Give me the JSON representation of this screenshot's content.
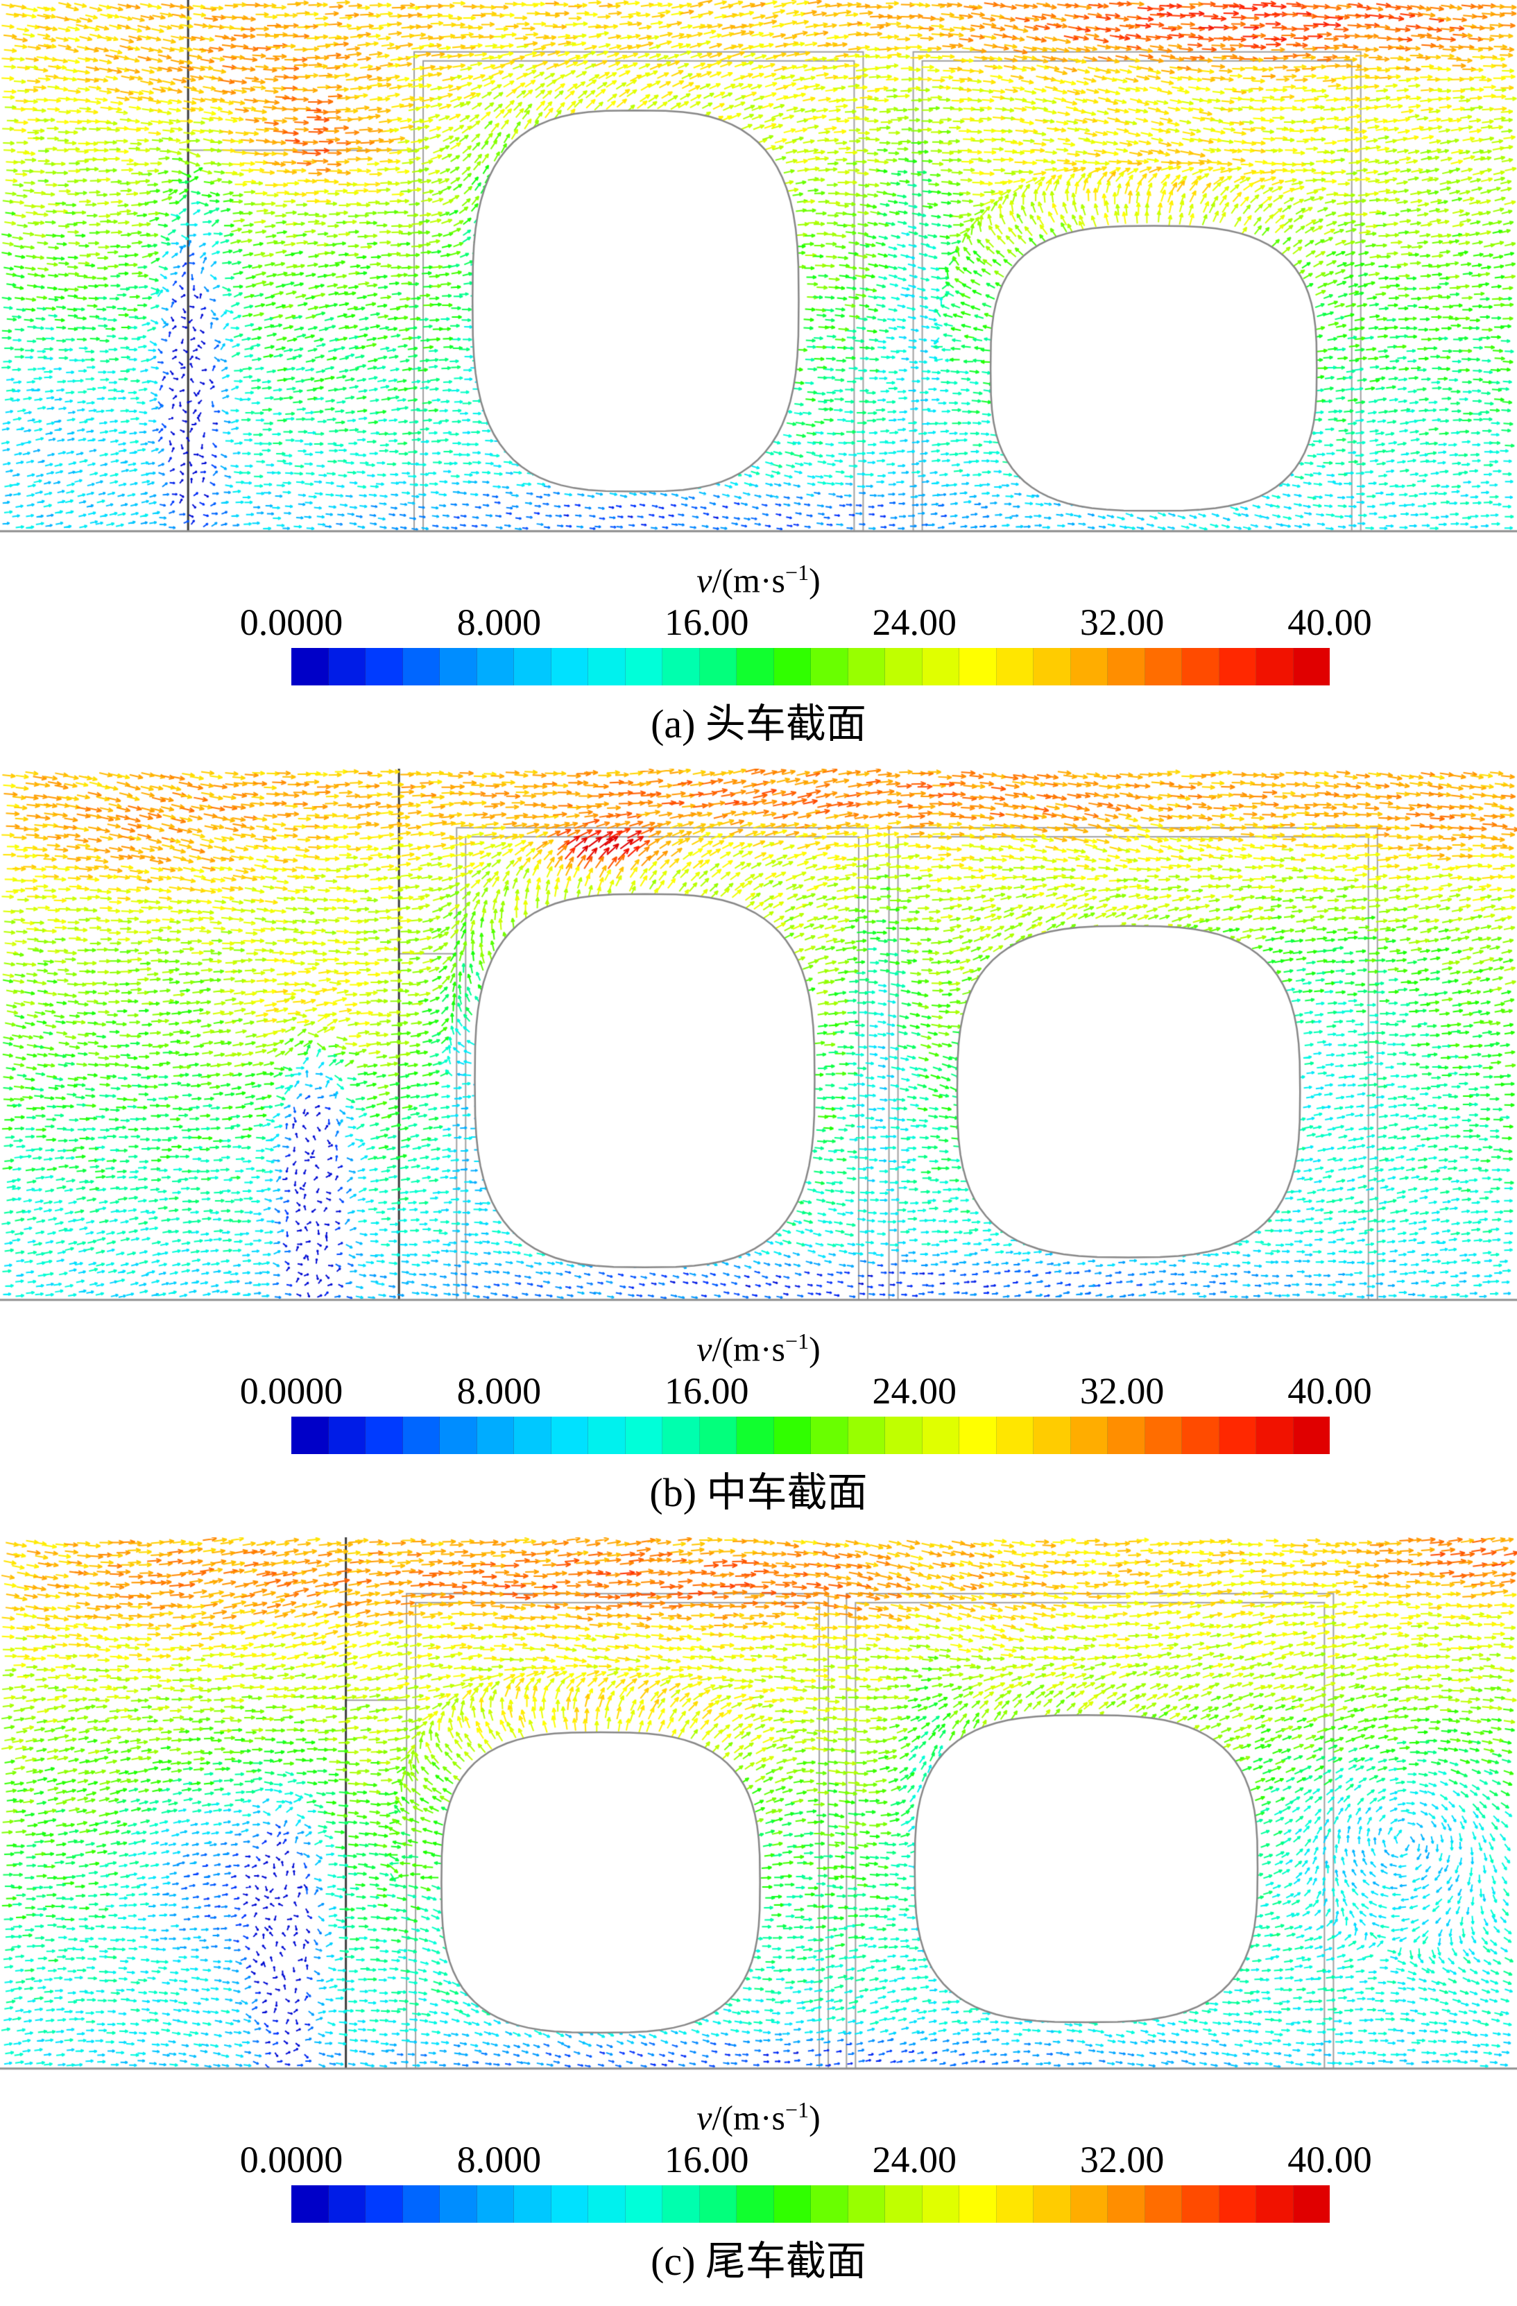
{
  "figure": {
    "background": "#ffffff",
    "n_panels": 3
  },
  "colormap_stops": [
    "#0000c8",
    "#0032ff",
    "#0080ff",
    "#00b9ff",
    "#00e6ff",
    "#00ffd9",
    "#00ff8c",
    "#19ff00",
    "#80ff00",
    "#c8ff00",
    "#ffff00",
    "#ffd200",
    "#ff9b00",
    "#ff6000",
    "#ff2100",
    "#e00000"
  ],
  "chart_data": [
    {
      "type": "vector-field",
      "panel": "a",
      "title": "(a) 头车截面",
      "description": "Velocity vector field around the head-car cross-section: two train body outlines inside rectangular frames above the ground line, slow (blue) column near the left vertical wall, fast (yellow) flow along the top, radial fan of vectors above the right body.",
      "colorbar": {
        "label": "v/(m·s−1)",
        "label_parts": {
          "italic": "v",
          "text": "/(m·s",
          "sup": "−1",
          "close": ")"
        },
        "min": 0,
        "max": 40,
        "ticks": [
          0,
          8,
          16,
          24,
          32,
          40
        ],
        "tick_labels": [
          "0.0000",
          "8.000",
          "16.00",
          "24.00",
          "32.00",
          "40.00"
        ],
        "colormap": "rainbow",
        "segments": 28,
        "orientation": "horizontal"
      },
      "geometry": {
        "ground_y": 0.962,
        "vline_x": 0.124,
        "ledge": {
          "x1": 0.124,
          "x2": 0.273,
          "y": 0.272
        },
        "boxes": [
          {
            "x1": 0.273,
            "y1": 0.094,
            "x2": 0.569
          },
          {
            "x1": 0.602,
            "y1": 0.094,
            "x2": 0.897
          }
        ],
        "blobs": [
          {
            "cx": 0.419,
            "cy": 0.545,
            "rx": 0.1075,
            "ry": 0.345,
            "n": 3.0,
            "fan": 0.35
          },
          {
            "cx": 0.7605,
            "cy": 0.667,
            "rx": 0.1075,
            "ry": 0.258,
            "n": 3.0,
            "fan": 1.0
          }
        ]
      },
      "flow": {
        "seed": 7,
        "top_speed": 29,
        "bottom_speed": 11,
        "column": {
          "x": 0.124,
          "y": 0.66,
          "sx": 0.02,
          "sy": 0.26
        },
        "speed_blobs": [
          {
            "x": 0.124,
            "y": 0.66,
            "sx": 0.02,
            "sy": 0.26,
            "ds": -26
          },
          {
            "x": 0.16,
            "y": 0.13,
            "sx": 0.1,
            "sy": 0.1,
            "ds": 5
          },
          {
            "x": 0.205,
            "y": 0.27,
            "sx": 0.05,
            "sy": 0.09,
            "ds": 9
          },
          {
            "x": 0.82,
            "y": 0.05,
            "sx": 0.2,
            "sy": 0.08,
            "ds": 8
          },
          {
            "x": 0.76,
            "y": 0.33,
            "sx": 0.11,
            "sy": 0.11,
            "ds": 5
          },
          {
            "x": 0.45,
            "y": 0.93,
            "sx": 0.26,
            "sy": 0.05,
            "ds": -9
          },
          {
            "x": 0.03,
            "y": 0.75,
            "sx": 0.08,
            "sy": 0.18,
            "ds": -5
          },
          {
            "x": 0.33,
            "y": 0.55,
            "sx": 0.03,
            "sy": 0.25,
            "ds": -8
          },
          {
            "x": 0.6,
            "y": 0.5,
            "sx": 0.025,
            "sy": 0.3,
            "ds": -8
          }
        ]
      }
    },
    {
      "type": "vector-field",
      "panel": "b",
      "title": "(b) 中车截面",
      "description": "Velocity vector field around the middle-car cross-section: orange high-speed burst above the left body, yellow band along the top, slow blue column left of the frames.",
      "colorbar": {
        "label": "v/(m·s−1)",
        "label_parts": {
          "italic": "v",
          "text": "/(m·s",
          "sup": "−1",
          "close": ")"
        },
        "min": 0,
        "max": 40,
        "ticks": [
          0,
          8,
          16,
          24,
          32,
          40
        ],
        "tick_labels": [
          "0.0000",
          "8.000",
          "16.00",
          "24.00",
          "32.00",
          "40.00"
        ],
        "colormap": "rainbow",
        "segments": 28,
        "orientation": "horizontal"
      },
      "geometry": {
        "ground_y": 0.962,
        "vline_x": 0.263,
        "ledge": {
          "x1": 0.263,
          "x2": 0.301,
          "y": 0.335
        },
        "boxes": [
          {
            "x1": 0.301,
            "y1": 0.107,
            "x2": 0.572
          },
          {
            "x1": 0.586,
            "y1": 0.107,
            "x2": 0.908
          }
        ],
        "blobs": [
          {
            "cx": 0.425,
            "cy": 0.565,
            "rx": 0.112,
            "ry": 0.338,
            "n": 3.0,
            "fan": 0.55
          },
          {
            "cx": 0.744,
            "cy": 0.585,
            "rx": 0.113,
            "ry": 0.3,
            "n": 3.0,
            "fan": 0.3
          }
        ]
      },
      "flow": {
        "seed": 13,
        "top_speed": 28,
        "bottom_speed": 11,
        "column": {
          "x": 0.205,
          "y": 0.74,
          "sx": 0.022,
          "sy": 0.22
        },
        "speed_blobs": [
          {
            "x": 0.205,
            "y": 0.74,
            "sx": 0.022,
            "sy": 0.22,
            "ds": -26
          },
          {
            "x": 0.09,
            "y": 0.13,
            "sx": 0.12,
            "sy": 0.13,
            "ds": 5
          },
          {
            "x": 0.205,
            "y": 0.45,
            "sx": 0.05,
            "sy": 0.12,
            "ds": 9
          },
          {
            "x": 0.395,
            "y": 0.15,
            "sx": 0.035,
            "sy": 0.04,
            "ds": 16
          },
          {
            "x": 0.55,
            "y": 0.06,
            "sx": 0.3,
            "sy": 0.07,
            "ds": 7
          },
          {
            "x": 0.95,
            "y": 0.1,
            "sx": 0.1,
            "sy": 0.1,
            "ds": 5
          },
          {
            "x": 0.578,
            "y": 0.5,
            "sx": 0.02,
            "sy": 0.3,
            "ds": -8
          },
          {
            "x": 0.55,
            "y": 0.93,
            "sx": 0.3,
            "sy": 0.045,
            "ds": -10
          },
          {
            "x": 0.31,
            "y": 0.6,
            "sx": 0.025,
            "sy": 0.25,
            "ds": -8
          },
          {
            "x": 0.87,
            "y": 0.5,
            "sx": 0.08,
            "sy": 0.25,
            "ds": -6
          }
        ]
      }
    },
    {
      "type": "vector-field",
      "panel": "c",
      "title": "(c) 尾车截面",
      "description": "Velocity vector field around the tail-car cross-section: yellow fast band arcing over the left body, slow blue column at the left, swirling vortex of cyan vectors at the right edge.",
      "colorbar": {
        "label": "v/(m·s−1)",
        "label_parts": {
          "italic": "v",
          "text": "/(m·s",
          "sup": "−1",
          "close": ")"
        },
        "min": 0,
        "max": 40,
        "ticks": [
          0,
          8,
          16,
          24,
          32,
          40
        ],
        "tick_labels": [
          "0.0000",
          "8.000",
          "16.00",
          "24.00",
          "32.00",
          "40.00"
        ],
        "colormap": "rainbow",
        "segments": 28,
        "orientation": "horizontal"
      },
      "geometry": {
        "ground_y": 0.962,
        "vline_x": 0.228,
        "ledge": {
          "x1": 0.228,
          "x2": 0.268,
          "y": 0.295
        },
        "boxes": [
          {
            "x1": 0.268,
            "y1": 0.102,
            "x2": 0.546
          },
          {
            "x1": 0.558,
            "y1": 0.102,
            "x2": 0.879
          }
        ],
        "blobs": [
          {
            "cx": 0.396,
            "cy": 0.625,
            "rx": 0.105,
            "ry": 0.272,
            "n": 3.0,
            "fan": 0.95
          },
          {
            "cx": 0.716,
            "cy": 0.6,
            "rx": 0.113,
            "ry": 0.278,
            "n": 3.0,
            "fan": 0.4
          }
        ]
      },
      "flow": {
        "seed": 21,
        "top_speed": 28,
        "bottom_speed": 11,
        "column": {
          "x": 0.186,
          "y": 0.72,
          "sx": 0.022,
          "sy": 0.2
        },
        "vortex": {
          "x": 0.925,
          "y": 0.55,
          "r": 0.075
        },
        "speed_blobs": [
          {
            "x": 0.186,
            "y": 0.72,
            "sx": 0.022,
            "sy": 0.2,
            "ds": -25
          },
          {
            "x": 0.14,
            "y": 0.62,
            "sx": 0.05,
            "sy": 0.16,
            "ds": -13
          },
          {
            "x": 0.1,
            "y": 0.1,
            "sx": 0.11,
            "sy": 0.11,
            "ds": 4
          },
          {
            "x": 0.42,
            "y": 0.09,
            "sx": 0.26,
            "sy": 0.08,
            "ds": 8
          },
          {
            "x": 0.4,
            "y": 0.33,
            "sx": 0.12,
            "sy": 0.1,
            "ds": 5
          },
          {
            "x": 0.97,
            "y": 0.05,
            "sx": 0.08,
            "sy": 0.06,
            "ds": 7
          },
          {
            "x": 0.925,
            "y": 0.55,
            "sx": 0.1,
            "sy": 0.18,
            "ds": -9
          },
          {
            "x": 0.5,
            "y": 0.94,
            "sx": 0.3,
            "sy": 0.04,
            "ds": -9
          },
          {
            "x": 0.61,
            "y": 0.5,
            "sx": 0.02,
            "sy": 0.28,
            "ds": -7
          }
        ]
      }
    }
  ]
}
